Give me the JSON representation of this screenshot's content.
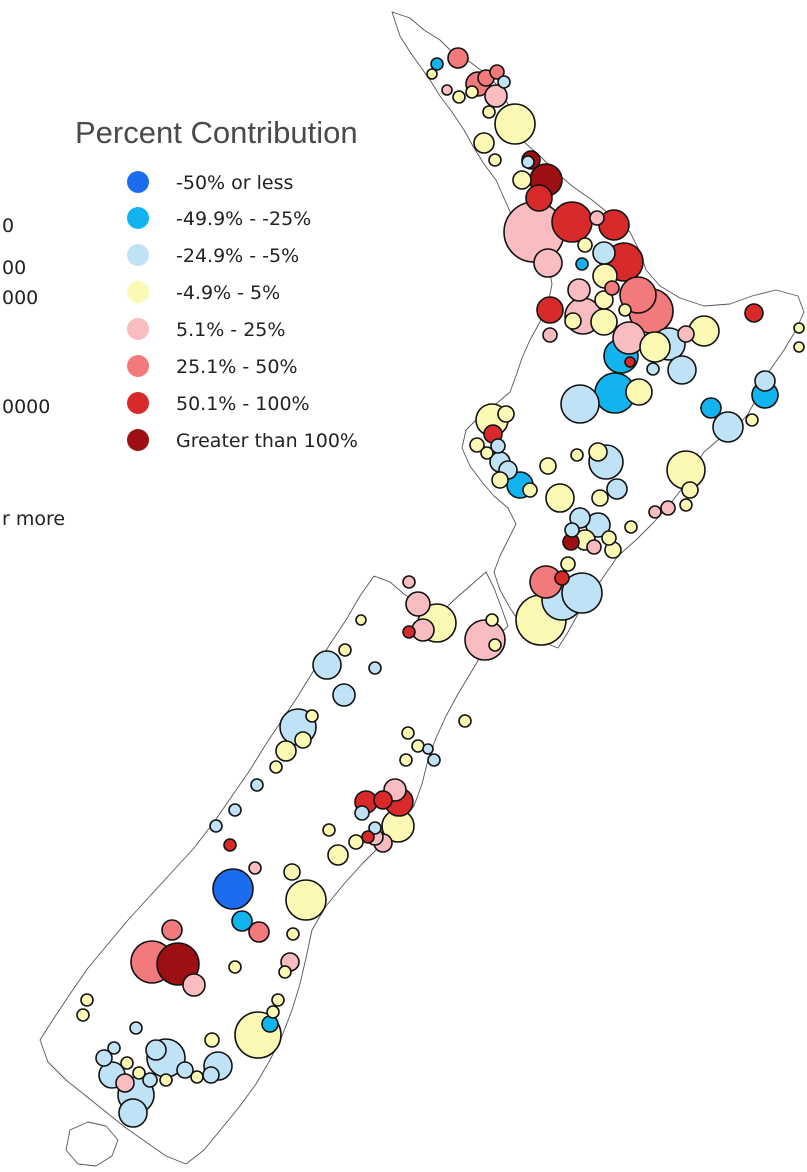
{
  "size_legend": {
    "labels": [
      "0",
      "00",
      "000",
      "0000",
      "r more"
    ]
  },
  "color_legend": {
    "title": "Percent Contribution",
    "classes": [
      {
        "label": "-50% or less",
        "color": "#1c6cf0"
      },
      {
        "label": "-49.9% - -25%",
        "color": "#12b4f0"
      },
      {
        "label": "-24.9% - -5%",
        "color": "#bfe2f7"
      },
      {
        "label": "-4.9% - 5%",
        "color": "#fbf9b4"
      },
      {
        "label": "5.1% - 25%",
        "color": "#f9bcc0"
      },
      {
        "label": "25.1% - 50%",
        "color": "#f2797c"
      },
      {
        "label": "50.1% - 100%",
        "color": "#d82a2a"
      },
      {
        "label": "Greater than 100%",
        "color": "#9e0f14"
      }
    ]
  },
  "map": {
    "region": "New Zealand"
  }
}
